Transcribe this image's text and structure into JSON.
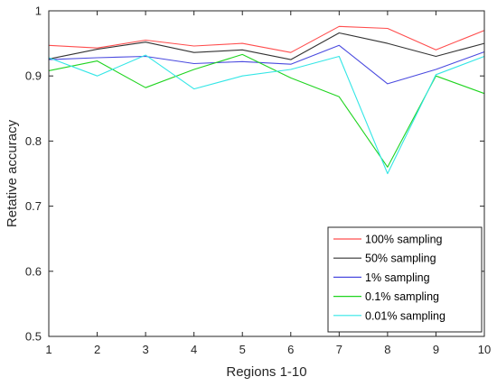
{
  "chart_data": {
    "type": "line",
    "xlabel": "Regions 1-10",
    "ylabel": "Retative accuracy",
    "x": [
      1,
      2,
      3,
      4,
      5,
      6,
      7,
      8,
      9,
      10
    ],
    "xlim": [
      1,
      10
    ],
    "ylim": [
      0.5,
      1
    ],
    "x_ticks": [
      "1",
      "2",
      "3",
      "4",
      "5",
      "6",
      "7",
      "8",
      "9",
      "10"
    ],
    "y_ticks": [
      "0.5",
      "0.6",
      "0.7",
      "0.8",
      "0.9",
      "1"
    ],
    "grid": false,
    "legend_position": "bottom-right",
    "series": [
      {
        "name": "100% sampling",
        "color": "#ff4d4d",
        "values": [
          0.947,
          0.943,
          0.955,
          0.946,
          0.95,
          0.936,
          0.976,
          0.973,
          0.94,
          0.97
        ]
      },
      {
        "name": "50% sampling",
        "color": "#333333",
        "values": [
          0.926,
          0.941,
          0.952,
          0.936,
          0.94,
          0.925,
          0.966,
          0.95,
          0.93,
          0.95
        ]
      },
      {
        "name": "1% sampling",
        "color": "#4a4adf",
        "values": [
          0.925,
          0.928,
          0.93,
          0.919,
          0.922,
          0.918,
          0.947,
          0.888,
          0.91,
          0.937
        ]
      },
      {
        "name": "0.1% sampling",
        "color": "#1fd41f",
        "values": [
          0.908,
          0.923,
          0.882,
          0.91,
          0.933,
          0.897,
          0.868,
          0.76,
          0.9,
          0.873
        ]
      },
      {
        "name": "0.01% sampling",
        "color": "#33e6e6",
        "values": [
          0.928,
          0.9,
          0.932,
          0.88,
          0.9,
          0.91,
          0.93,
          0.75,
          0.902,
          0.93
        ]
      }
    ]
  }
}
